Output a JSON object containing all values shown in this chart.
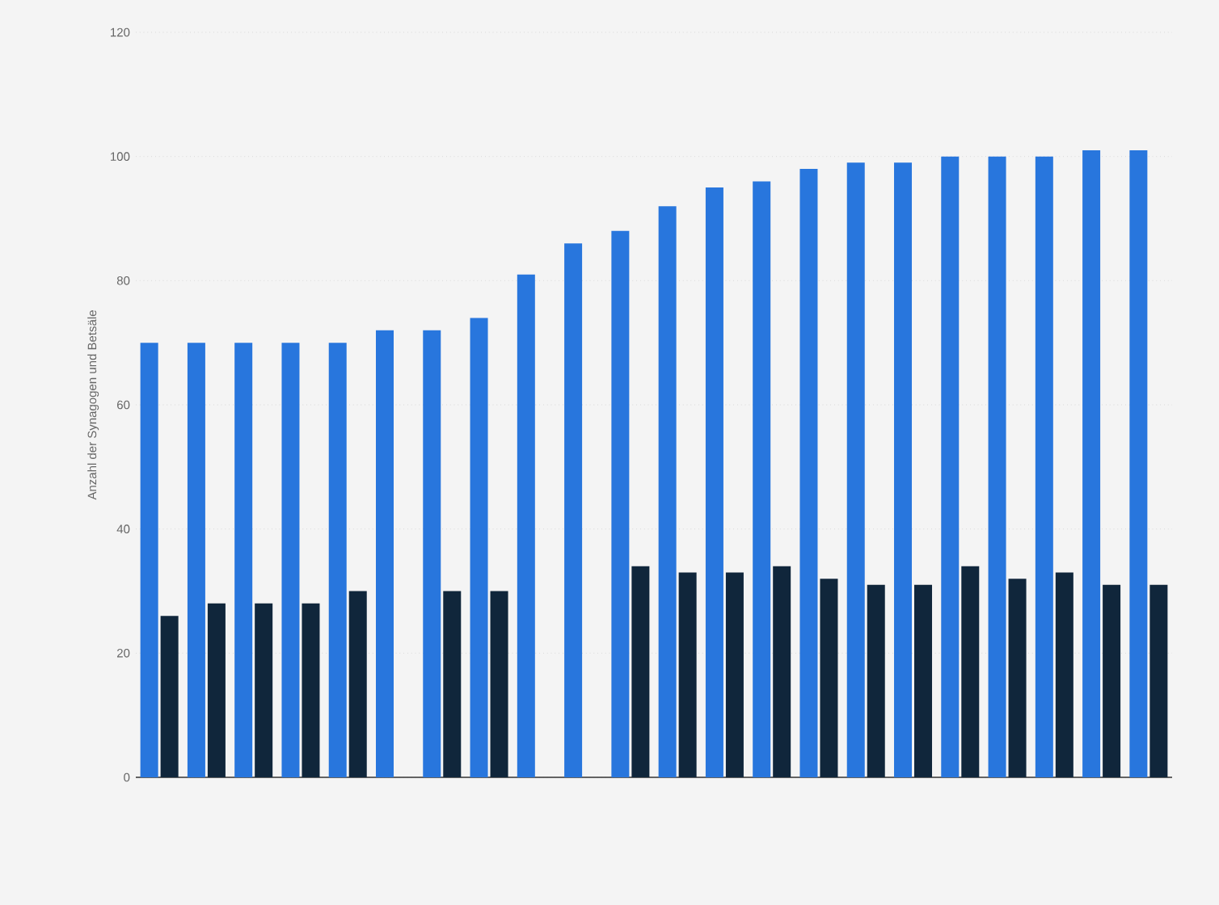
{
  "chart_data": {
    "type": "bar",
    "ylabel": "Anzahl der Synagogen und Betsäle",
    "categories": [
      null,
      null,
      null,
      null,
      null,
      null,
      null,
      null,
      null,
      null,
      null,
      null,
      null,
      null,
      null,
      null,
      null,
      null,
      null,
      null,
      null,
      null
    ],
    "series": [
      {
        "color": "#2876dd",
        "values": [
          70,
          70,
          70,
          70,
          70,
          72,
          72,
          74,
          81,
          86,
          88,
          92,
          95,
          96,
          98,
          99,
          99,
          100,
          100,
          100,
          101,
          101
        ]
      },
      {
        "color": "#10263b",
        "values": [
          26,
          28,
          28,
          28,
          30,
          null,
          30,
          30,
          null,
          null,
          34,
          33,
          33,
          34,
          32,
          31,
          31,
          34,
          32,
          33,
          31,
          31
        ]
      }
    ],
    "ylim": [
      0,
      120
    ],
    "yticks": [
      0,
      20,
      40,
      60,
      80,
      100,
      120
    ],
    "grid": "y"
  }
}
